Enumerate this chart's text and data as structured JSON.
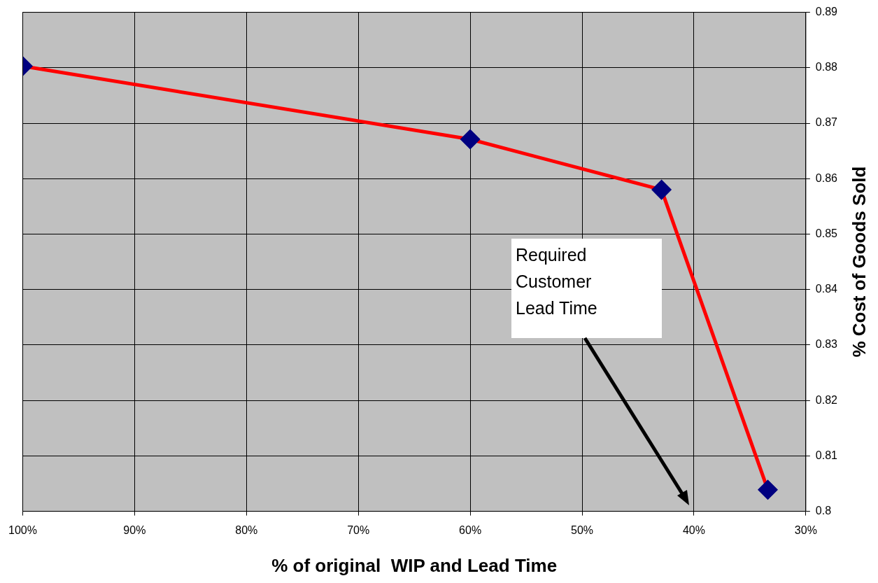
{
  "chart_data": {
    "type": "line",
    "xlabel": "% of original  WIP and Lead Time",
    "ylabel": "% Cost of Goods Sold",
    "x": [
      100,
      60,
      42.9,
      33.4
    ],
    "series": [
      {
        "color": "#ff0000",
        "values": [
          0.8803,
          0.8671,
          0.858,
          0.8039
        ]
      }
    ],
    "marker": "diamond",
    "xlim": [
      100,
      30
    ],
    "xticks": [
      {
        "value": 100,
        "label": "100%"
      },
      {
        "value": 90,
        "label": "90%"
      },
      {
        "value": 80,
        "label": "80%"
      },
      {
        "value": 70,
        "label": "70%"
      },
      {
        "value": 60,
        "label": "60%"
      },
      {
        "value": 50,
        "label": "50%"
      },
      {
        "value": 40,
        "label": "40%"
      },
      {
        "value": 30,
        "label": "30%"
      }
    ],
    "ylim": [
      0.8,
      0.89
    ],
    "yticks": [
      0.8,
      0.81,
      0.82,
      0.83,
      0.84,
      0.85,
      0.86,
      0.87,
      0.88,
      0.89
    ],
    "grid": true,
    "legend": false,
    "annotations": [
      "Required Customer Lead Time"
    ]
  }
}
